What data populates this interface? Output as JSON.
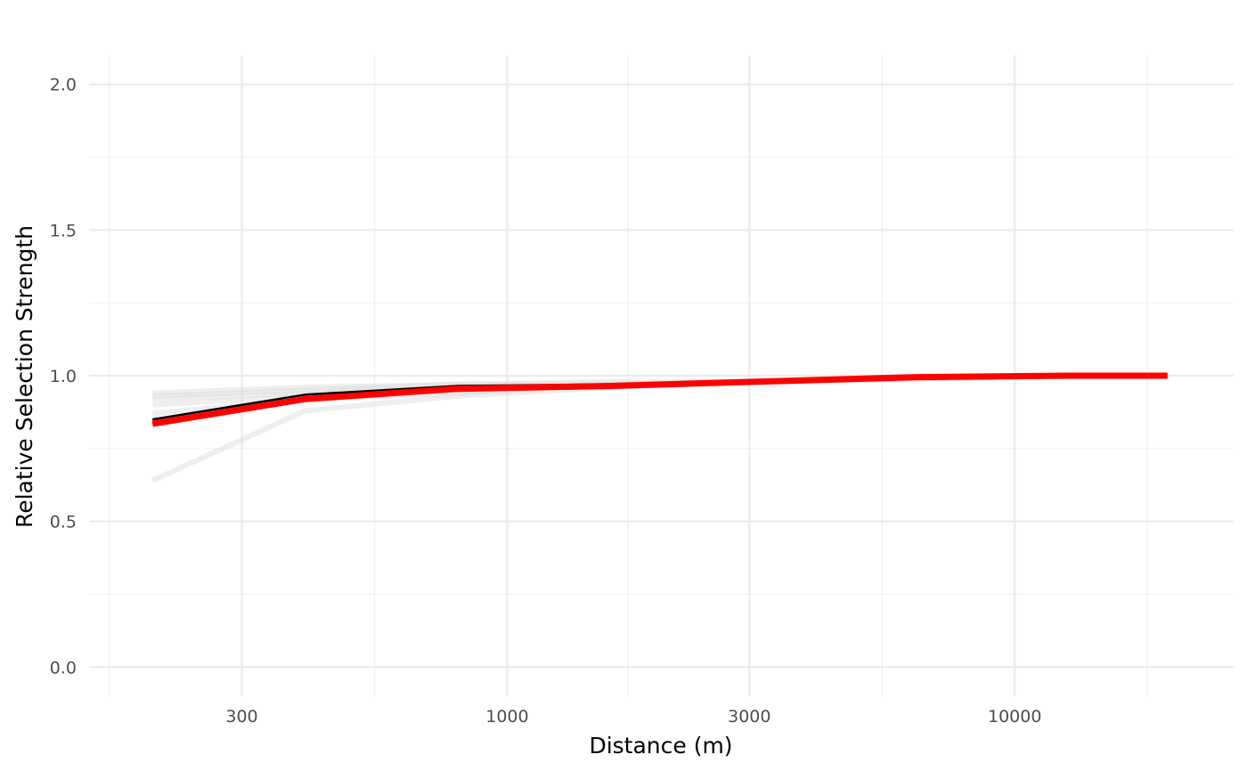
{
  "chart_data": {
    "type": "line",
    "title": "",
    "xlabel": "Distance (m)",
    "ylabel": "Relative Selection Strength",
    "x_scale": "log10",
    "xlim": [
      150,
      27000
    ],
    "ylim": [
      -0.1,
      2.1
    ],
    "x_ticks": [
      300,
      1000,
      3000,
      10000
    ],
    "x_tick_labels": [
      "300",
      "1000",
      "3000",
      "10000"
    ],
    "y_ticks": [
      0.0,
      0.5,
      1.0,
      1.5,
      2.0
    ],
    "y_tick_labels": [
      "0.0",
      "0.5",
      "1.0",
      "1.5",
      "2.0"
    ],
    "grid": true,
    "legend": "none",
    "x": [
      200,
      400,
      800,
      1600,
      3200,
      6400,
      12800,
      20000
    ],
    "series": [
      {
        "role": "bootstrap",
        "color": "#d9d9d9",
        "values": [
          0.64,
          0.88,
          0.93,
          0.96,
          0.98,
          0.99,
          1.0,
          1.0
        ]
      },
      {
        "role": "bootstrap",
        "color": "#d9d9d9",
        "values": [
          0.87,
          0.92,
          0.94,
          0.97,
          0.98,
          0.99,
          1.0,
          1.0
        ]
      },
      {
        "role": "bootstrap",
        "color": "#d9d9d9",
        "values": [
          0.9,
          0.93,
          0.96,
          0.97,
          0.98,
          0.99,
          1.0,
          1.0
        ]
      },
      {
        "role": "bootstrap",
        "color": "#d9d9d9",
        "values": [
          0.92,
          0.94,
          0.96,
          0.97,
          0.98,
          0.99,
          1.0,
          1.0
        ]
      },
      {
        "role": "bootstrap",
        "color": "#d9d9d9",
        "values": [
          0.93,
          0.95,
          0.97,
          0.97,
          0.98,
          0.99,
          1.0,
          1.0
        ]
      },
      {
        "role": "bootstrap",
        "color": "#d9d9d9",
        "values": [
          0.94,
          0.96,
          0.97,
          0.98,
          0.98,
          0.99,
          1.0,
          1.0
        ]
      },
      {
        "role": "estimate",
        "color": "#000000",
        "values": [
          0.85,
          0.935,
          0.965,
          0.97,
          0.98,
          0.995,
          1.0,
          1.0
        ]
      },
      {
        "role": "mean",
        "color": "#ff0000",
        "values": [
          0.835,
          0.92,
          0.955,
          0.965,
          0.98,
          0.995,
          1.0,
          1.0
        ]
      }
    ]
  }
}
